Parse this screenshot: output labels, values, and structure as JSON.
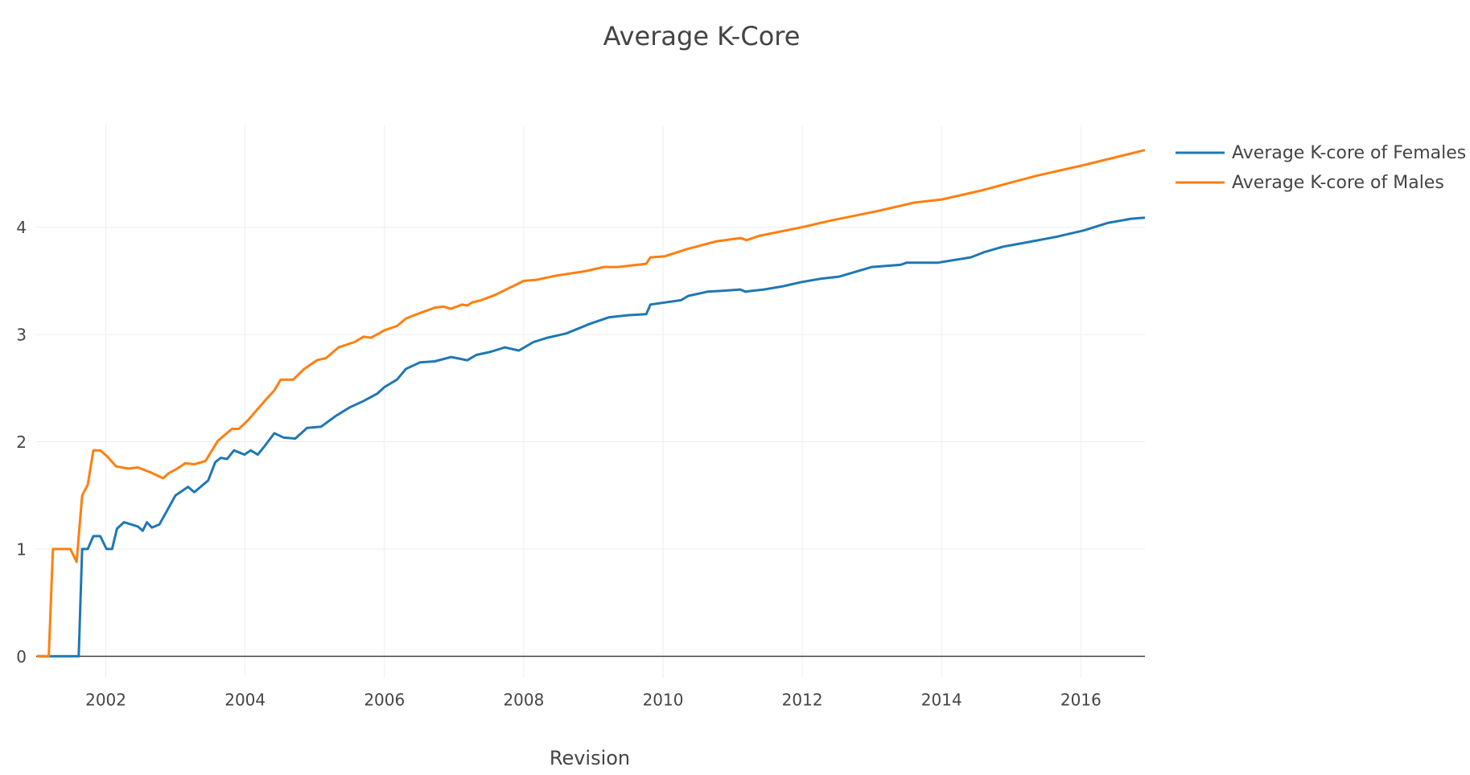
{
  "chart_data": {
    "type": "line",
    "title": "Average K-Core",
    "x_label": "Revision",
    "xlim": [
      2001.0,
      2016.92
    ],
    "xticks": [
      2002,
      2004,
      2006,
      2008,
      2010,
      2012,
      2014,
      2016
    ],
    "ylim": [
      -0.2,
      4.95
    ],
    "yticks": [
      0,
      1,
      2,
      3,
      4
    ],
    "grid": true,
    "legend": "right",
    "series": [
      {
        "name": "Average K-core of Females",
        "color": "#1f77b4",
        "x": [
          2001.01,
          2001.61,
          2001.66,
          2001.74,
          2001.82,
          2001.92,
          2002.01,
          2002.09,
          2002.16,
          2002.26,
          2002.46,
          2002.53,
          2002.59,
          2002.66,
          2002.77,
          2003.0,
          2003.18,
          2003.27,
          2003.36,
          2003.47,
          2003.57,
          2003.65,
          2003.74,
          2003.84,
          2003.99,
          2004.08,
          2004.18,
          2004.28,
          2004.42,
          2004.55,
          2004.72,
          2004.89,
          2005.09,
          2005.3,
          2005.5,
          2005.7,
          2005.9,
          2006.0,
          2006.18,
          2006.31,
          2006.51,
          2006.72,
          2006.96,
          2007.19,
          2007.32,
          2007.53,
          2007.73,
          2007.93,
          2008.14,
          2008.34,
          2008.61,
          2008.95,
          2009.22,
          2009.49,
          2009.76,
          2009.82,
          2010.26,
          2010.36,
          2010.64,
          2010.91,
          2011.11,
          2011.18,
          2011.45,
          2011.72,
          2011.99,
          2012.26,
          2012.53,
          2013.0,
          2013.41,
          2013.5,
          2013.95,
          2014.42,
          2014.62,
          2014.89,
          2015.23,
          2015.64,
          2016.04,
          2016.38,
          2016.72,
          2016.92
        ],
        "values": [
          0,
          0,
          1.0,
          1.0,
          1.12,
          1.12,
          1.0,
          1.0,
          1.19,
          1.25,
          1.21,
          1.17,
          1.25,
          1.2,
          1.23,
          1.5,
          1.58,
          1.53,
          1.58,
          1.64,
          1.81,
          1.85,
          1.84,
          1.92,
          1.88,
          1.92,
          1.88,
          1.96,
          2.08,
          2.04,
          2.03,
          2.13,
          2.14,
          2.24,
          2.32,
          2.38,
          2.45,
          2.51,
          2.58,
          2.68,
          2.74,
          2.75,
          2.79,
          2.76,
          2.81,
          2.84,
          2.88,
          2.85,
          2.93,
          2.97,
          3.01,
          3.1,
          3.16,
          3.18,
          3.19,
          3.28,
          3.32,
          3.36,
          3.4,
          3.41,
          3.42,
          3.4,
          3.42,
          3.45,
          3.49,
          3.52,
          3.54,
          3.63,
          3.65,
          3.67,
          3.67,
          3.72,
          3.77,
          3.82,
          3.86,
          3.91,
          3.97,
          4.04,
          4.08,
          4.09
        ]
      },
      {
        "name": "Average K-core of Males",
        "color": "#ff7f0e",
        "x": [
          2001.01,
          2001.18,
          2001.24,
          2001.49,
          2001.58,
          2001.66,
          2001.74,
          2001.82,
          2001.92,
          2002.01,
          2002.15,
          2002.32,
          2002.46,
          2002.66,
          2002.82,
          2002.91,
          2003.0,
          2003.14,
          2003.27,
          2003.43,
          2003.61,
          2003.81,
          2003.91,
          2004.04,
          2004.28,
          2004.42,
          2004.51,
          2004.69,
          2004.85,
          2005.03,
          2005.16,
          2005.34,
          2005.57,
          2005.7,
          2005.81,
          2006.0,
          2006.18,
          2006.31,
          2006.51,
          2006.72,
          2006.85,
          2006.95,
          2007.12,
          2007.19,
          2007.26,
          2007.39,
          2007.59,
          2008.0,
          2008.18,
          2008.47,
          2008.88,
          2009.15,
          2009.35,
          2009.76,
          2009.82,
          2010.03,
          2010.36,
          2010.77,
          2011.11,
          2011.2,
          2011.38,
          2011.99,
          2012.39,
          2013.07,
          2013.61,
          2014.01,
          2014.55,
          2015.36,
          2016.04,
          2016.92
        ],
        "values": [
          0,
          0,
          1.0,
          1.0,
          0.88,
          1.5,
          1.6,
          1.92,
          1.92,
          1.87,
          1.77,
          1.75,
          1.76,
          1.71,
          1.66,
          1.71,
          1.74,
          1.8,
          1.79,
          1.82,
          2.01,
          2.12,
          2.12,
          2.2,
          2.38,
          2.48,
          2.58,
          2.58,
          2.68,
          2.76,
          2.78,
          2.88,
          2.93,
          2.98,
          2.97,
          3.04,
          3.08,
          3.15,
          3.2,
          3.25,
          3.26,
          3.24,
          3.28,
          3.27,
          3.3,
          3.32,
          3.37,
          3.5,
          3.51,
          3.55,
          3.59,
          3.63,
          3.63,
          3.66,
          3.72,
          3.73,
          3.8,
          3.87,
          3.9,
          3.88,
          3.92,
          4.0,
          4.06,
          4.15,
          4.23,
          4.26,
          4.34,
          4.48,
          4.58,
          4.72
        ]
      }
    ]
  }
}
